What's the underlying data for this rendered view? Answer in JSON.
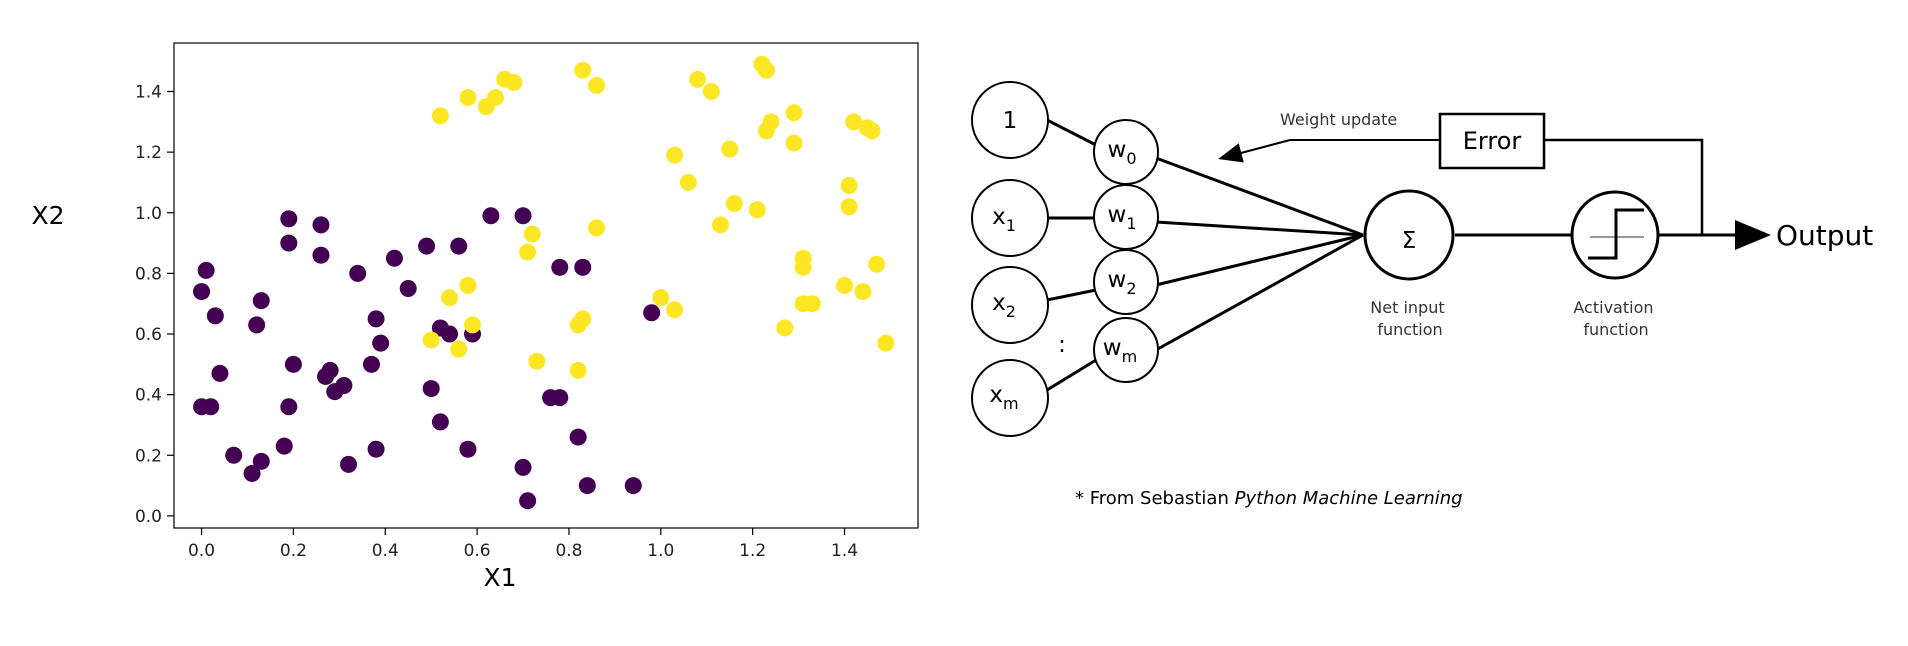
{
  "chart_data": {
    "type": "scatter",
    "xlabel": "X1",
    "ylabel": "X2",
    "xlim": [
      -0.06,
      1.56
    ],
    "ylim": [
      -0.04,
      1.56
    ],
    "xticks": [
      "0.0",
      "0.2",
      "0.4",
      "0.6",
      "0.8",
      "1.0",
      "1.2",
      "1.4"
    ],
    "yticks": [
      "0.0",
      "0.2",
      "0.4",
      "0.6",
      "0.8",
      "1.0",
      "1.2",
      "1.4"
    ],
    "grid": false,
    "series": [
      {
        "color": "#440154",
        "points": [
          [
            0.01,
            0.81
          ],
          [
            0.0,
            0.74
          ],
          [
            0.03,
            0.66
          ],
          [
            0.04,
            0.47
          ],
          [
            0.0,
            0.36
          ],
          [
            0.02,
            0.36
          ],
          [
            0.07,
            0.2
          ],
          [
            0.11,
            0.14
          ],
          [
            0.13,
            0.18
          ],
          [
            0.13,
            0.71
          ],
          [
            0.12,
            0.63
          ],
          [
            0.19,
            0.98
          ],
          [
            0.19,
            0.9
          ],
          [
            0.2,
            0.5
          ],
          [
            0.19,
            0.36
          ],
          [
            0.18,
            0.23
          ],
          [
            0.26,
            0.96
          ],
          [
            0.26,
            0.86
          ],
          [
            0.27,
            0.46
          ],
          [
            0.28,
            0.48
          ],
          [
            0.29,
            0.41
          ],
          [
            0.31,
            0.43
          ],
          [
            0.32,
            0.17
          ],
          [
            0.34,
            0.8
          ],
          [
            0.37,
            0.5
          ],
          [
            0.38,
            0.65
          ],
          [
            0.39,
            0.57
          ],
          [
            0.38,
            0.22
          ],
          [
            0.42,
            0.85
          ],
          [
            0.45,
            0.75
          ],
          [
            0.49,
            0.89
          ],
          [
            0.5,
            0.42
          ],
          [
            0.52,
            0.31
          ],
          [
            0.52,
            0.62
          ],
          [
            0.54,
            0.6
          ],
          [
            0.56,
            0.89
          ],
          [
            0.59,
            0.6
          ],
          [
            0.58,
            0.22
          ],
          [
            0.63,
            0.99
          ],
          [
            0.7,
            0.99
          ],
          [
            0.7,
            0.16
          ],
          [
            0.71,
            0.05
          ],
          [
            0.76,
            0.39
          ],
          [
            0.78,
            0.39
          ],
          [
            0.78,
            0.82
          ],
          [
            0.83,
            0.82
          ],
          [
            0.82,
            0.26
          ],
          [
            0.84,
            0.1
          ],
          [
            0.94,
            0.1
          ],
          [
            0.98,
            0.67
          ]
        ]
      },
      {
        "color": "#fde725",
        "points": [
          [
            0.52,
            1.32
          ],
          [
            0.58,
            1.38
          ],
          [
            0.62,
            1.35
          ],
          [
            0.64,
            1.38
          ],
          [
            0.66,
            1.44
          ],
          [
            0.68,
            1.43
          ],
          [
            0.83,
            1.47
          ],
          [
            0.86,
            1.42
          ],
          [
            0.86,
            0.95
          ],
          [
            0.72,
            0.93
          ],
          [
            0.71,
            0.87
          ],
          [
            0.5,
            0.58
          ],
          [
            0.54,
            0.72
          ],
          [
            0.56,
            0.55
          ],
          [
            0.58,
            0.76
          ],
          [
            0.59,
            0.63
          ],
          [
            0.73,
            0.51
          ],
          [
            0.82,
            0.63
          ],
          [
            0.83,
            0.65
          ],
          [
            0.82,
            0.48
          ],
          [
            1.0,
            0.72
          ],
          [
            1.03,
            0.68
          ],
          [
            1.03,
            1.19
          ],
          [
            1.06,
            1.1
          ],
          [
            1.08,
            1.44
          ],
          [
            1.11,
            1.4
          ],
          [
            1.13,
            0.96
          ],
          [
            1.15,
            1.21
          ],
          [
            1.16,
            1.03
          ],
          [
            1.21,
            1.01
          ],
          [
            1.22,
            1.49
          ],
          [
            1.23,
            1.47
          ],
          [
            1.23,
            1.27
          ],
          [
            1.24,
            1.3
          ],
          [
            1.27,
            0.62
          ],
          [
            1.29,
            1.33
          ],
          [
            1.29,
            1.23
          ],
          [
            1.31,
            0.85
          ],
          [
            1.31,
            0.82
          ],
          [
            1.31,
            0.7
          ],
          [
            1.33,
            0.7
          ],
          [
            1.4,
            0.76
          ],
          [
            1.41,
            1.09
          ],
          [
            1.41,
            1.02
          ],
          [
            1.42,
            1.3
          ],
          [
            1.44,
            0.74
          ],
          [
            1.45,
            1.28
          ],
          [
            1.46,
            1.27
          ],
          [
            1.47,
            0.83
          ],
          [
            1.49,
            0.57
          ]
        ]
      }
    ]
  },
  "diagram": {
    "inputs": [
      {
        "main": "1",
        "sub": ""
      },
      {
        "main": "x",
        "sub": "1"
      },
      {
        "main": "x",
        "sub": "2"
      },
      {
        "main": "x",
        "sub": "m"
      }
    ],
    "weights": [
      {
        "main": "w",
        "sub": "0"
      },
      {
        "main": "w",
        "sub": "1"
      },
      {
        "main": "w",
        "sub": "2"
      },
      {
        "main": "w",
        "sub": "m"
      }
    ],
    "ellipsis": ":",
    "sum_symbol": "Σ",
    "net_input_label": [
      "Net input",
      "function"
    ],
    "activation_label": [
      "Activation",
      "function"
    ],
    "error_label": "Error",
    "weight_update_label": "Weight update",
    "output_label": "Output"
  },
  "citation": {
    "prefix": "* From Sebastian ",
    "title": "Python Machine Learning"
  }
}
